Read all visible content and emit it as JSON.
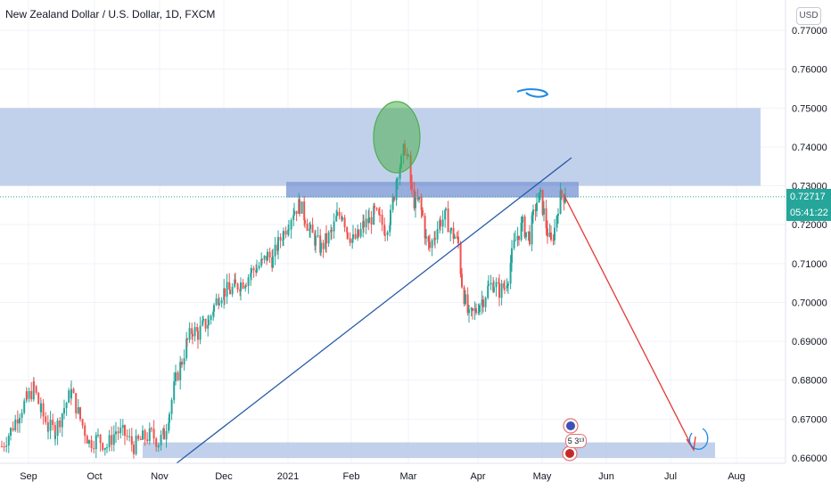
{
  "header": {
    "symbol_title": "New Zealand Dollar / U.S. Dollar, 1D, FXCM",
    "currency_button": "USD"
  },
  "price_axis": {
    "current_price": "0.72717",
    "countdown": "05:41:22"
  },
  "events_badge": "5 3¹³",
  "colors": {
    "up": "#26a69a",
    "down": "#ef5350",
    "zone": "#b3c6e6",
    "zone_dark": "#7e9ad6",
    "trendline": "#2a5ca8",
    "projection": "#e53935",
    "marker_green": "#4caf50",
    "marker_blue": "#1e88e5",
    "grid": "#f0f3fa"
  },
  "chart_data": {
    "type": "candlestick",
    "title": "New Zealand Dollar / U.S. Dollar, 1D, FXCM",
    "ylim": [
      0.658,
      0.7745
    ],
    "y_ticks": [
      "0.77000",
      "0.76000",
      "0.75000",
      "0.74000",
      "0.73000",
      "0.72000",
      "0.71000",
      "0.70000",
      "0.69000",
      "0.68000",
      "0.67000",
      "0.66000"
    ],
    "x_ticks": [
      "Sep",
      "Oct",
      "Nov",
      "Dec",
      "2021",
      "Feb",
      "Mar",
      "Apr",
      "May",
      "Jun",
      "Jul",
      "Aug"
    ],
    "grid": true,
    "last_price": 0.72717,
    "path": [
      [
        0,
        0.663
      ],
      [
        10,
        0.667
      ],
      [
        20,
        0.672
      ],
      [
        28,
        0.675
      ],
      [
        36,
        0.678
      ],
      [
        44,
        0.672
      ],
      [
        52,
        0.668
      ],
      [
        60,
        0.667
      ],
      [
        70,
        0.673
      ],
      [
        78,
        0.677
      ],
      [
        88,
        0.67
      ],
      [
        98,
        0.664
      ],
      [
        108,
        0.665
      ],
      [
        118,
        0.663
      ],
      [
        128,
        0.667
      ],
      [
        138,
        0.666
      ],
      [
        148,
        0.663
      ],
      [
        158,
        0.665
      ],
      [
        168,
        0.666
      ],
      [
        176,
        0.664
      ],
      [
        182,
        0.666
      ],
      [
        188,
        0.672
      ],
      [
        195,
        0.68
      ],
      [
        202,
        0.685
      ],
      [
        208,
        0.69
      ],
      [
        214,
        0.693
      ],
      [
        220,
        0.692
      ],
      [
        226,
        0.694
      ],
      [
        232,
        0.695
      ],
      [
        238,
        0.699
      ],
      [
        244,
        0.702
      ],
      [
        250,
        0.703
      ],
      [
        256,
        0.703
      ],
      [
        262,
        0.704
      ],
      [
        268,
        0.705
      ],
      [
        274,
        0.706
      ],
      [
        280,
        0.708
      ],
      [
        286,
        0.709
      ],
      [
        292,
        0.71
      ],
      [
        298,
        0.712
      ],
      [
        304,
        0.711
      ],
      [
        310,
        0.715
      ],
      [
        316,
        0.718
      ],
      [
        322,
        0.721
      ],
      [
        328,
        0.724
      ],
      [
        334,
        0.725
      ],
      [
        340,
        0.722
      ],
      [
        346,
        0.718
      ],
      [
        352,
        0.716
      ],
      [
        358,
        0.714
      ],
      [
        364,
        0.716
      ],
      [
        370,
        0.718
      ],
      [
        376,
        0.722
      ],
      [
        382,
        0.723
      ],
      [
        388,
        0.718
      ],
      [
        394,
        0.716
      ],
      [
        400,
        0.717
      ],
      [
        406,
        0.72
      ],
      [
        412,
        0.721
      ],
      [
        418,
        0.723
      ],
      [
        424,
        0.721
      ],
      [
        430,
        0.719
      ],
      [
        436,
        0.722
      ],
      [
        440,
        0.728
      ],
      [
        444,
        0.734
      ],
      [
        448,
        0.736
      ],
      [
        452,
        0.74
      ],
      [
        456,
        0.736
      ],
      [
        460,
        0.728
      ],
      [
        464,
        0.725
      ],
      [
        468,
        0.726
      ],
      [
        472,
        0.722
      ],
      [
        476,
        0.716
      ],
      [
        480,
        0.714
      ],
      [
        486,
        0.718
      ],
      [
        492,
        0.721
      ],
      [
        498,
        0.722
      ],
      [
        504,
        0.718
      ],
      [
        508,
        0.717
      ],
      [
        512,
        0.715
      ],
      [
        516,
        0.705
      ],
      [
        520,
        0.7
      ],
      [
        524,
        0.696
      ],
      [
        528,
        0.697
      ],
      [
        532,
        0.698
      ],
      [
        536,
        0.7
      ],
      [
        540,
        0.701
      ],
      [
        546,
        0.704
      ],
      [
        552,
        0.705
      ],
      [
        558,
        0.703
      ],
      [
        564,
        0.704
      ],
      [
        568,
        0.707
      ],
      [
        572,
        0.712
      ],
      [
        576,
        0.716
      ],
      [
        580,
        0.718
      ],
      [
        584,
        0.72
      ],
      [
        588,
        0.718
      ],
      [
        592,
        0.717
      ],
      [
        596,
        0.722
      ],
      [
        600,
        0.726
      ],
      [
        604,
        0.727
      ],
      [
        608,
        0.723
      ],
      [
        612,
        0.718
      ],
      [
        616,
        0.715
      ],
      [
        620,
        0.719
      ],
      [
        624,
        0.725
      ],
      [
        628,
        0.728
      ],
      [
        632,
        0.7272
      ]
    ],
    "annotations": {
      "upper_zone": [
        0.73,
        0.75
      ],
      "resistance_band": [
        0.7295,
        0.731
      ],
      "support_zone": [
        0.66,
        0.664
      ],
      "trendline": [
        [
          0.66,
          0.737
        ]
      ],
      "projection_target": 0.662
    }
  }
}
